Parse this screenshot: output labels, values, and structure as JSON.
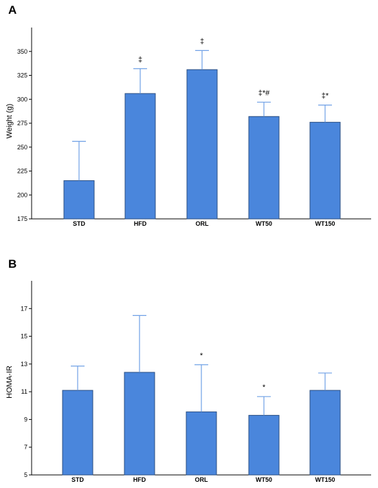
{
  "chart_data": [
    {
      "panel": "A",
      "type": "bar",
      "ylabel": "Weight (g)",
      "categories": [
        "STD",
        "HFD",
        "ORL",
        "WT50",
        "WT150"
      ],
      "values": [
        215,
        306,
        331,
        282,
        276
      ],
      "error_upper": [
        256,
        332,
        351,
        297,
        294
      ],
      "annotations": [
        "",
        "‡",
        "‡",
        "‡*#",
        "‡*"
      ],
      "ylim": [
        175,
        375
      ],
      "yticks": [
        175,
        200,
        225,
        250,
        275,
        300,
        325,
        350
      ],
      "grid": false
    },
    {
      "panel": "B",
      "type": "bar",
      "ylabel": "HOMA-IR",
      "categories": [
        "STD",
        "HFD",
        "ORL",
        "WT50",
        "WT150"
      ],
      "values": [
        11.1,
        12.4,
        9.55,
        9.3,
        11.1
      ],
      "error_upper": [
        12.85,
        16.5,
        12.95,
        10.65,
        12.35
      ],
      "annotations": [
        "",
        "",
        "*",
        "*",
        ""
      ],
      "ylim": [
        5,
        19
      ],
      "yticks": [
        5,
        7,
        9,
        11,
        13,
        15,
        17
      ],
      "grid": false
    }
  ],
  "colors": {
    "bar": "#4a86dc",
    "bar_edge": "#2b4f82",
    "error_bar": "#6fa0e6"
  }
}
